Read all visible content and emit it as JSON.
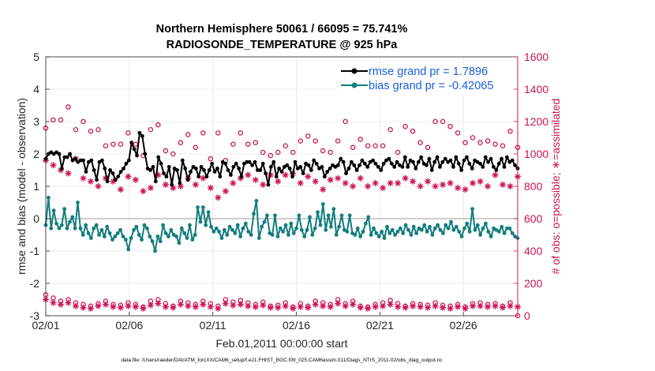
{
  "chart_data": {
    "type": "line",
    "title_line1": "Northern Hemisphere 50061 / 66095 = 75.741%",
    "title_line2": "RADIOSONDE_TEMPERATURE @ 925 hPa",
    "xlabel": "Feb.01,2011 00:00:00 start",
    "ylabel": "rmse and bias (model - observation)",
    "y2label": "# of obs: o=possible; ∗=assimilated",
    "footer": "data file: /Users/raeder/DAI/ATM_forcXX/CAM6_setup/f.e21.FHIST_BGC.f09_025.CAM6assim.011/Diags_NTrS_2011-02/obs_diag_output.nc",
    "xlim": [
      0,
      28.25
    ],
    "ylim": [
      -3,
      5
    ],
    "y2lim": [
      0,
      1600
    ],
    "x_ticks": [
      0,
      5,
      10,
      15,
      20,
      25
    ],
    "x_tick_labels": [
      "02/01",
      "02/06",
      "02/11",
      "02/16",
      "02/21",
      "02/26"
    ],
    "y_ticks": [
      -3,
      -2,
      -1,
      0,
      1,
      2,
      3,
      4,
      5
    ],
    "y_tick_labels": [
      "-3",
      "-2",
      "-1",
      "0",
      "1",
      "2",
      "3",
      "4",
      "5"
    ],
    "y2_ticks": [
      0,
      200,
      400,
      600,
      800,
      1000,
      1200,
      1400,
      1600
    ],
    "y2_tick_labels": [
      "0",
      "200",
      "400",
      "600",
      "800",
      "1000",
      "1200",
      "1400",
      "1600"
    ],
    "legend_position": "top-right",
    "series": [
      {
        "name": "rmse grand pr = 1.7896",
        "color": "#000000",
        "values": [
          1.85,
          2.0,
          2.05,
          2.0,
          2.05,
          2.0,
          1.55,
          1.9,
          1.9,
          2.0,
          1.8,
          1.85,
          1.75,
          1.8,
          1.8,
          1.45,
          1.75,
          1.8,
          1.5,
          1.2,
          1.75,
          1.8,
          1.55,
          1.15,
          1.5,
          1.4,
          1.2,
          1.3,
          1.45,
          1.55,
          1.7,
          1.8,
          2.35,
          2.15,
          1.95,
          2.65,
          2.55,
          2.0,
          1.55,
          1.5,
          1.6,
          1.15,
          1.9,
          1.7,
          1.4,
          1.3,
          1.6,
          1.05,
          1.55,
          1.5,
          1.1,
          1.8,
          1.55,
          1.2,
          1.45,
          1.6,
          1.55,
          1.3,
          1.6,
          1.5,
          1.3,
          1.5,
          1.7,
          1.45,
          1.55,
          1.3,
          1.75,
          1.7,
          1.5,
          1.35,
          1.6,
          1.7,
          1.55,
          1.3,
          1.7,
          1.75,
          1.75,
          1.65,
          1.75,
          1.5,
          1.5,
          1.7,
          1.4,
          1.05,
          1.6,
          1.75,
          1.3,
          1.55,
          1.45,
          1.6,
          1.65,
          1.55,
          1.3,
          1.75,
          1.55,
          1.6,
          1.4,
          1.7,
          1.65,
          1.5,
          1.8,
          1.7,
          1.55,
          1.6,
          1.3,
          1.45,
          1.55,
          1.65,
          1.6,
          1.65,
          1.85,
          1.75,
          1.4,
          1.55,
          1.75,
          1.65,
          1.5,
          1.65,
          1.8,
          1.7,
          1.6,
          1.75,
          1.8,
          1.7,
          1.6,
          1.5,
          1.7,
          1.8,
          1.85,
          1.7,
          1.6,
          1.75,
          1.65,
          1.6,
          1.9,
          1.6,
          1.8,
          1.75,
          1.55,
          1.75,
          1.9,
          1.7,
          1.65,
          1.85,
          1.5,
          1.75,
          1.9,
          1.6,
          1.75,
          1.85,
          1.75,
          1.8,
          1.6,
          1.9,
          1.7,
          1.5,
          1.8,
          1.9,
          1.7,
          1.55,
          1.8,
          1.75,
          1.7,
          1.6,
          1.9,
          1.75,
          1.85,
          1.6,
          1.5,
          1.7,
          1.85,
          1.6,
          1.9,
          1.75,
          1.8,
          1.65,
          1.55
        ]
      },
      {
        "name": "bias grand pr = -0.42065",
        "color": "#137d7d",
        "values": [
          -0.2,
          0.65,
          -0.3,
          0.25,
          -0.15,
          -0.3,
          -0.2,
          0.3,
          -0.3,
          -0.1,
          0.05,
          -0.3,
          0.5,
          -0.3,
          -0.5,
          -0.2,
          -0.45,
          -0.6,
          -0.3,
          -0.2,
          -0.5,
          -0.35,
          -0.55,
          -0.25,
          -0.45,
          -0.65,
          -0.55,
          -0.45,
          -0.35,
          -0.55,
          -0.65,
          -0.95,
          -0.6,
          -0.35,
          -0.25,
          -0.5,
          -0.65,
          -0.2,
          -0.3,
          -0.55,
          -0.7,
          -1.0,
          -0.55,
          -0.7,
          -0.2,
          -0.45,
          -0.55,
          -0.35,
          -0.5,
          -0.55,
          -0.75,
          -0.3,
          -0.45,
          -0.6,
          -0.2,
          -0.65,
          -0.5,
          0.35,
          -0.1,
          0.35,
          -0.2,
          0.2,
          -0.25,
          -0.4,
          -0.3,
          -0.4,
          -0.6,
          -0.35,
          -0.5,
          -0.25,
          -0.35,
          -0.45,
          -0.2,
          -0.55,
          -0.3,
          -0.15,
          -0.4,
          -0.5,
          0.15,
          0.55,
          -0.6,
          -0.25,
          -0.1,
          0.1,
          -0.45,
          -0.5,
          0.1,
          -0.55,
          -0.3,
          -0.4,
          -0.2,
          -0.5,
          -0.15,
          -0.45,
          -0.3,
          0.1,
          -0.35,
          -0.55,
          -0.35,
          0.05,
          -0.5,
          -0.3,
          0.2,
          -0.2,
          0.45,
          -0.35,
          0.1,
          -0.25,
          0.3,
          -0.5,
          -0.25,
          0.1,
          -0.35,
          -0.4,
          0.1,
          -0.45,
          -0.5,
          -0.3,
          -0.55,
          -0.4,
          -0.15,
          0.05,
          -0.5,
          -0.3,
          -0.45,
          -0.55,
          -0.4,
          -0.6,
          -0.25,
          -0.45,
          -0.35,
          -0.5,
          -0.4,
          -0.3,
          -0.45,
          -0.2,
          -0.35,
          -0.5,
          -0.25,
          -0.45,
          -0.3,
          -0.35,
          -0.2,
          -0.4,
          -0.25,
          -0.5,
          -0.3,
          -0.2,
          -0.35,
          -0.45,
          -0.2,
          -0.3,
          -0.1,
          -0.35,
          -0.25,
          -0.4,
          -0.55,
          -0.3,
          -0.15,
          -0.4,
          0.3,
          -0.35,
          -0.2,
          -0.5,
          -0.3,
          -0.15,
          -0.4,
          -0.55,
          -0.3,
          -0.35,
          -0.4,
          -0.25,
          -0.45,
          -0.3,
          -0.3,
          -0.45,
          -0.55,
          -0.6
        ]
      }
    ],
    "possible_obs": {
      "name": "possible",
      "color": "#cc1458",
      "values": [
        1160,
        1210,
        1210,
        1290,
        1150,
        1200,
        1140,
        1150,
        1050,
        1060,
        1060,
        1130,
        1060,
        990,
        1150,
        1180,
        1020,
        1000,
        1070,
        1120,
        1040,
        1130,
        970,
        1130,
        960,
        1060,
        1130,
        1060,
        1070,
        1010,
        990,
        1010,
        1050,
        1010,
        1080,
        1110,
        1080,
        1020,
        1010,
        1080,
        1200,
        1040,
        1090,
        1050,
        1050,
        1050,
        1150,
        1010,
        1170,
        1140,
        1070,
        1040,
        1200,
        1200,
        1170,
        1130,
        1070,
        1100,
        1070,
        1080,
        1060,
        1050,
        1140,
        1040
      ]
    },
    "assimilated_obs": {
      "name": "assimilated",
      "color": "#cc1458",
      "values": [
        960,
        930,
        900,
        880,
        970,
        850,
        830,
        800,
        850,
        830,
        780,
        860,
        840,
        770,
        790,
        870,
        810,
        790,
        800,
        850,
        810,
        850,
        790,
        730,
        770,
        820,
        850,
        870,
        840,
        810,
        870,
        830,
        870,
        880,
        820,
        860,
        830,
        780,
        840,
        850,
        820,
        800,
        850,
        800,
        820,
        790,
        820,
        820,
        850,
        830,
        800,
        830,
        800,
        810,
        820,
        790,
        780,
        820,
        830,
        800,
        870,
        810,
        800,
        860
      ]
    },
    "bottom_possible": {
      "name": "possible (bottom)",
      "values": [
        130,
        110,
        90,
        100,
        80,
        70,
        60,
        75,
        90,
        70,
        65,
        80,
        70,
        55,
        90,
        100,
        75,
        60,
        90,
        80,
        70,
        90,
        75,
        60,
        100,
        85,
        95,
        80,
        70,
        85,
        60,
        65,
        80,
        55,
        75,
        60,
        90,
        80,
        70,
        100,
        75,
        90,
        60,
        55,
        70,
        80,
        95,
        75,
        60,
        75,
        70,
        65,
        80,
        65,
        60,
        70,
        55,
        75,
        80,
        70,
        75,
        60,
        80,
        0
      ]
    },
    "bottom_assimilated": {
      "name": "assimilated (bottom)",
      "values": [
        100,
        80,
        70,
        80,
        60,
        50,
        45,
        60,
        70,
        55,
        50,
        60,
        55,
        45,
        65,
        75,
        55,
        50,
        70,
        60,
        55,
        70,
        55,
        45,
        75,
        65,
        70,
        60,
        55,
        65,
        50,
        50,
        60,
        45,
        55,
        50,
        70,
        60,
        55,
        75,
        60,
        70,
        50,
        45,
        55,
        60,
        70,
        55,
        50,
        60,
        55,
        50,
        60,
        50,
        45,
        55,
        45,
        60,
        60,
        55,
        60,
        50,
        60,
        55
      ]
    }
  }
}
